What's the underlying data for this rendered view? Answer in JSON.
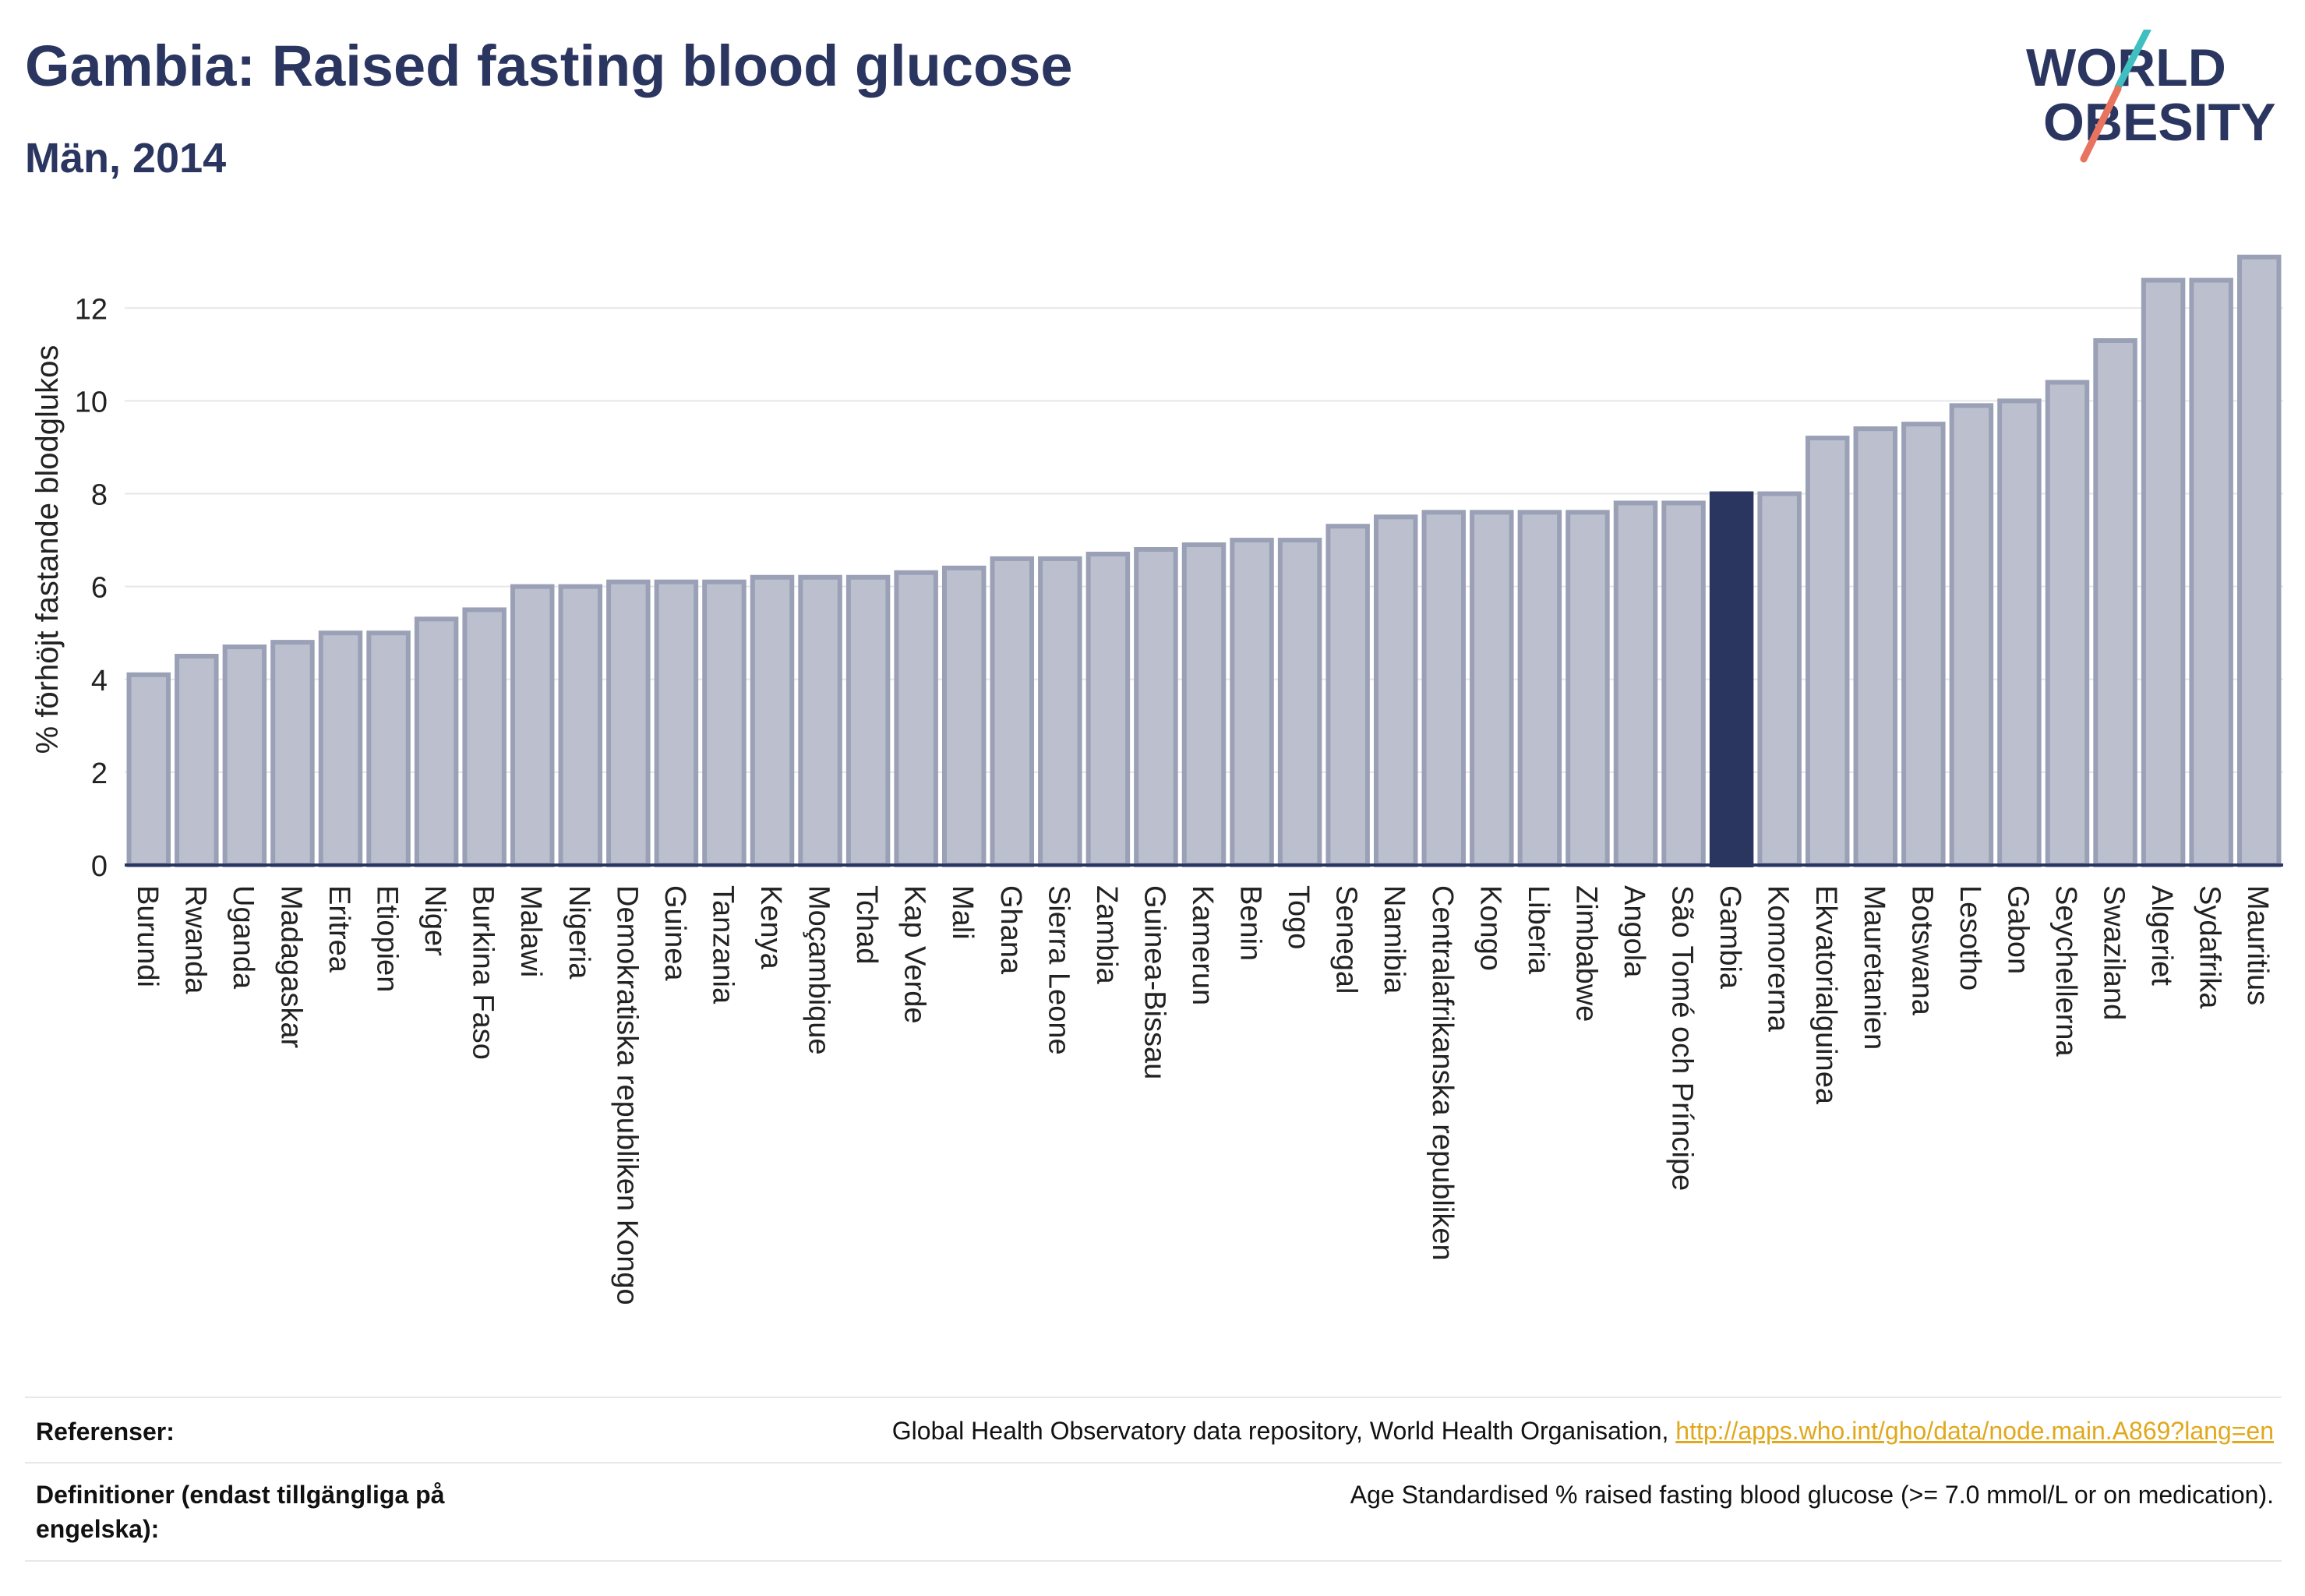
{
  "header": {
    "title": "Gambia: Raised fasting blood glucose",
    "subtitle": "Män, 2014"
  },
  "logo": {
    "line1": "WORLD",
    "line2": "OBESITY"
  },
  "chart_data": {
    "type": "bar",
    "ylabel": "% förhöjt fastande blodglukos",
    "ylim": [
      0,
      13.6
    ],
    "yticks": [
      0,
      2,
      4,
      6,
      8,
      10,
      12
    ],
    "grid": true,
    "highlight": "Gambia",
    "colors": {
      "bar": "#bcc0ce",
      "bar_edge": "#9aa0b6",
      "highlight": "#2a3560",
      "grid": "#e6e6ea",
      "axis": "#2a3560"
    },
    "categories": [
      "Burundi",
      "Rwanda",
      "Uganda",
      "Madagaskar",
      "Eritrea",
      "Etiopien",
      "Niger",
      "Burkina Faso",
      "Malawi",
      "Nigeria",
      "Demokratiska republiken Kongo",
      "Guinea",
      "Tanzania",
      "Kenya",
      "Moçambique",
      "Tchad",
      "Kap Verde",
      "Mali",
      "Ghana",
      "Sierra Leone",
      "Zambia",
      "Guinea-Bissau",
      "Kamerun",
      "Benin",
      "Togo",
      "Senegal",
      "Namibia",
      "Centralafrikanska republiken",
      "Kongo",
      "Liberia",
      "Zimbabwe",
      "Angola",
      "São Tomé och Príncipe",
      "Gambia",
      "Komorerna",
      "Ekvatorialguinea",
      "Mauretanien",
      "Botswana",
      "Lesotho",
      "Gabon",
      "Seychellerna",
      "Swaziland",
      "Algeriet",
      "Sydafrika",
      "Mauritius"
    ],
    "values": [
      4.1,
      4.5,
      4.7,
      4.8,
      5.0,
      5.0,
      5.3,
      5.5,
      6.0,
      6.0,
      6.1,
      6.1,
      6.1,
      6.2,
      6.2,
      6.2,
      6.3,
      6.4,
      6.6,
      6.6,
      6.7,
      6.8,
      6.9,
      7.0,
      7.0,
      7.3,
      7.5,
      7.6,
      7.6,
      7.6,
      7.6,
      7.8,
      7.8,
      8.0,
      8.0,
      9.2,
      9.4,
      9.5,
      9.9,
      10.0,
      10.4,
      11.3,
      12.6,
      12.6,
      13.1
    ]
  },
  "footer": {
    "references_label": "Referenser:",
    "references_text": "Global Health Observatory data repository, World Health Organisation,",
    "references_link": "http://apps.who.int/gho/data/node.main.A869?lang=en",
    "definitions_label": "Definitioner (endast tillgängliga på engelska):",
    "definitions_text": "Age Standardised % raised fasting blood glucose (>= 7.0 mmol/L or on medication)."
  }
}
